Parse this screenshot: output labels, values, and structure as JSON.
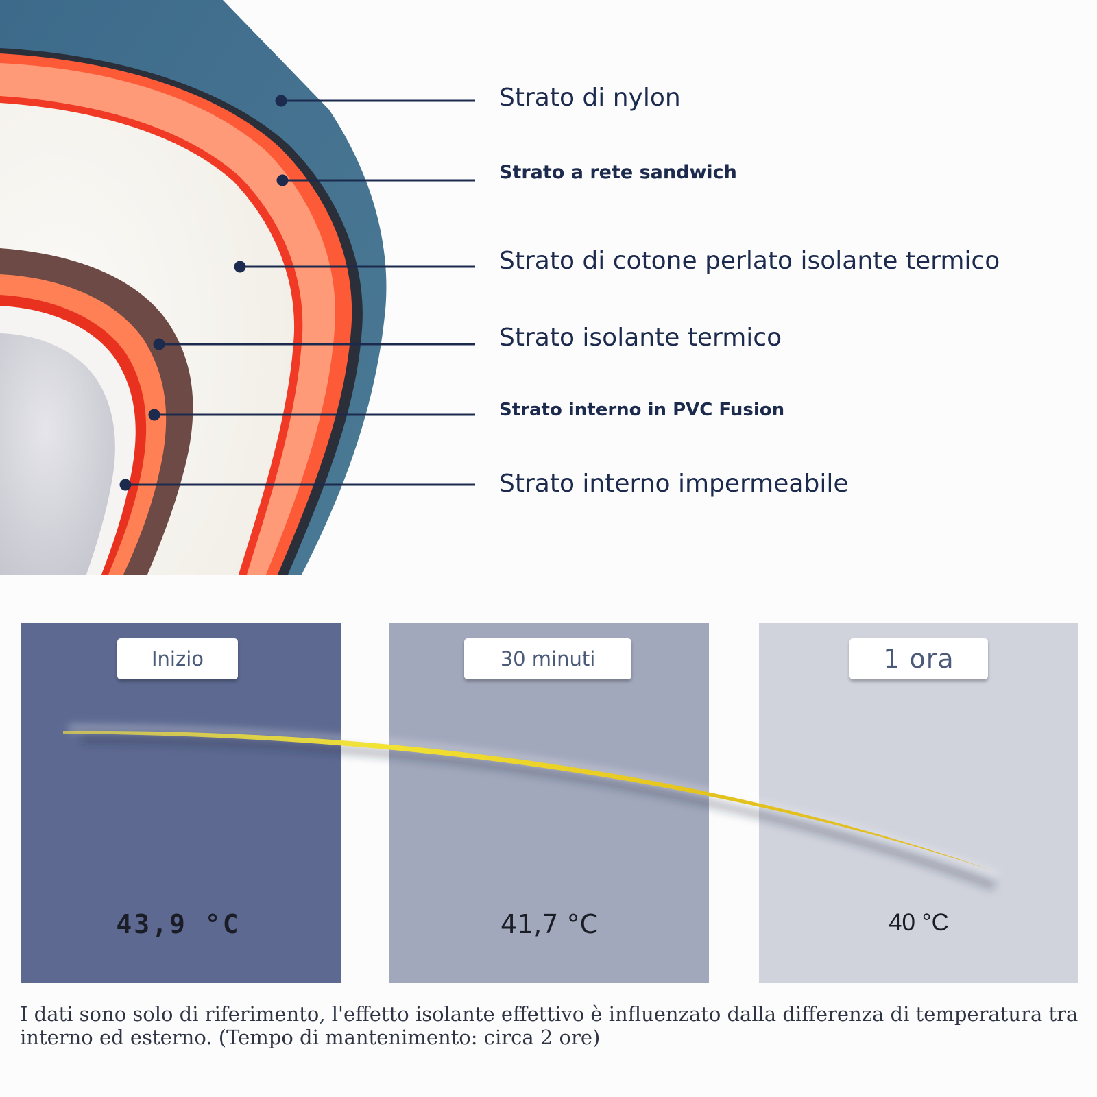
{
  "layers": {
    "nylon": "Strato di nylon",
    "sandwich": "Strato a rete sandwich",
    "cotton": "Strato di cotone perlato isolante termico",
    "insulating": "Strato isolante termico",
    "pvc": "Strato interno in PVC Fusion",
    "waterproof": "Strato interno impermeabile"
  },
  "stages": [
    {
      "label": "Inizio",
      "temperature": "43,9 °C"
    },
    {
      "label": "30 minuti",
      "temperature": "41,7 °C"
    },
    {
      "label": "1 ora",
      "temperature": "40 °C"
    }
  ],
  "footnote": "I dati sono solo di riferimento, l'effetto isolante effettivo è influenzato dalla differenza di temperatura tra interno ed esterno. (Tempo di mantenimento: circa 2 ore)",
  "colors": {
    "nylon_shell": "#4a7591",
    "orange_layer": "#fd5a38",
    "inner_brown": "#6d4a45",
    "panel_start": "#5d6991",
    "panel_30min": "#a2a8bc",
    "panel_1h": "#d0d2dc",
    "curve": "#e3cf1e",
    "text_dark": "#1c2a4e"
  }
}
